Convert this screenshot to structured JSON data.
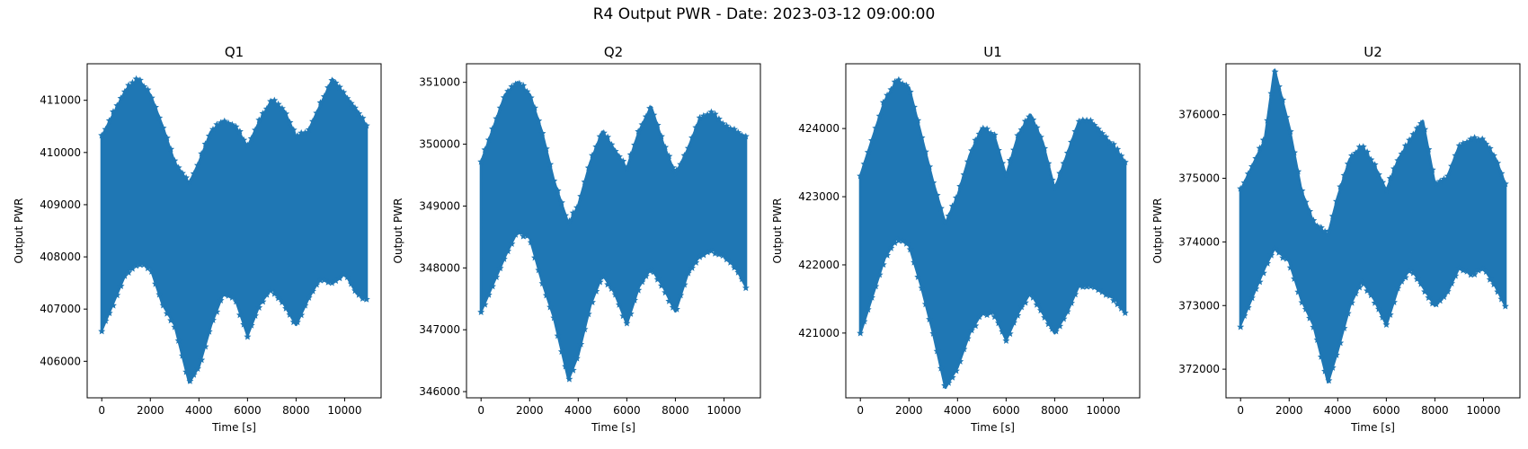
{
  "suptitle": "R4 Output PWR - Date: 2023-03-12 09:00:00",
  "colors": {
    "series": "#1f77b4",
    "axes": "#000000",
    "background": "#ffffff"
  },
  "chart_data": [
    {
      "type": "scatter",
      "marker": "star",
      "title": "Q1",
      "xlabel": "Time [s]",
      "ylabel": "Output PWR",
      "xlim": [
        -600,
        11500
      ],
      "ylim": [
        405300,
        411700
      ],
      "xticks": [
        0,
        2000,
        4000,
        6000,
        8000,
        10000
      ],
      "yticks": [
        406000,
        407000,
        408000,
        409000,
        410000,
        411000
      ],
      "grid": false,
      "x": [
        0,
        1000,
        1500,
        2000,
        2500,
        3000,
        3600,
        4000,
        4500,
        5000,
        5500,
        6000,
        6500,
        7000,
        7500,
        8000,
        8500,
        9000,
        9500,
        10000,
        10500,
        10900
      ],
      "upper": [
        410300,
        411200,
        411400,
        411100,
        410500,
        409800,
        409400,
        409800,
        410400,
        410600,
        410500,
        410100,
        410600,
        411000,
        410800,
        410300,
        410400,
        410900,
        411400,
        411100,
        410800,
        410500
      ],
      "lower": [
        406600,
        407700,
        407900,
        407800,
        407100,
        406700,
        405600,
        405900,
        406700,
        407300,
        407200,
        406500,
        407100,
        407400,
        407100,
        406700,
        407200,
        407600,
        407500,
        407700,
        407300,
        407200
      ]
    },
    {
      "type": "scatter",
      "marker": "star",
      "title": "Q2",
      "xlabel": "Time [s]",
      "ylabel": "Output PWR",
      "xlim": [
        -600,
        11500
      ],
      "ylim": [
        345900,
        351300
      ],
      "xticks": [
        0,
        2000,
        4000,
        6000,
        8000,
        10000
      ],
      "yticks": [
        346000,
        347000,
        348000,
        349000,
        350000,
        351000
      ],
      "grid": false,
      "x": [
        0,
        1000,
        1500,
        2000,
        2500,
        3000,
        3600,
        4000,
        4500,
        5000,
        5500,
        6000,
        6500,
        7000,
        7500,
        8000,
        8500,
        9000,
        9500,
        10000,
        10500,
        10900
      ],
      "upper": [
        349700,
        350800,
        351000,
        350800,
        350200,
        349400,
        348700,
        349000,
        349700,
        350200,
        349900,
        349600,
        350200,
        350600,
        350000,
        349500,
        349900,
        350400,
        350500,
        350300,
        350200,
        350100
      ],
      "lower": [
        347300,
        348200,
        348600,
        348500,
        347800,
        347200,
        346200,
        346600,
        347400,
        347900,
        347600,
        347100,
        347700,
        348000,
        347700,
        347300,
        347900,
        348200,
        348300,
        348200,
        348000,
        347700
      ]
    },
    {
      "type": "scatter",
      "marker": "star",
      "title": "U1",
      "xlabel": "Time [s]",
      "ylabel": "Output PWR",
      "xlim": [
        -600,
        11500
      ],
      "ylim": [
        420050,
        424950
      ],
      "xticks": [
        0,
        2000,
        4000,
        6000,
        8000,
        10000
      ],
      "yticks": [
        421000,
        422000,
        423000,
        424000
      ],
      "grid": false,
      "x": [
        0,
        1000,
        1500,
        2000,
        2500,
        3000,
        3500,
        4000,
        4500,
        5000,
        5500,
        6000,
        6500,
        7000,
        7500,
        8000,
        8500,
        9000,
        9500,
        10000,
        10500,
        10900
      ],
      "upper": [
        423300,
        424400,
        424700,
        424600,
        423900,
        423200,
        422600,
        423000,
        423600,
        424000,
        423900,
        423300,
        423900,
        424200,
        423800,
        423100,
        423600,
        424100,
        424100,
        423900,
        423700,
        423500
      ],
      "lower": [
        421000,
        422100,
        422400,
        422300,
        421700,
        421000,
        420200,
        420500,
        421000,
        421300,
        421300,
        420900,
        421300,
        421600,
        421300,
        421000,
        421300,
        421700,
        421700,
        421600,
        421500,
        421300
      ]
    },
    {
      "type": "scatter",
      "marker": "star",
      "title": "U2",
      "xlabel": "Time [s]",
      "ylabel": "Output PWR",
      "xlim": [
        -600,
        11500
      ],
      "ylim": [
        371550,
        376800
      ],
      "xticks": [
        0,
        2000,
        4000,
        6000,
        8000,
        10000
      ],
      "yticks": [
        372000,
        373000,
        374000,
        375000,
        376000
      ],
      "grid": false,
      "x": [
        0,
        1000,
        1400,
        2000,
        2500,
        3000,
        3600,
        4000,
        4500,
        5000,
        5500,
        6000,
        6500,
        7000,
        7500,
        8000,
        8500,
        9000,
        9500,
        10000,
        10500,
        10900
      ],
      "upper": [
        374800,
        375600,
        376700,
        375800,
        374800,
        374300,
        374100,
        374700,
        375300,
        375500,
        375200,
        374800,
        375300,
        375600,
        375900,
        374900,
        375000,
        375500,
        375600,
        375600,
        375300,
        374900
      ],
      "lower": [
        372700,
        373600,
        373900,
        373700,
        373100,
        372700,
        371800,
        372300,
        373000,
        373400,
        373100,
        372700,
        373300,
        373600,
        373300,
        373000,
        373200,
        373600,
        373500,
        373600,
        373300,
        373000
      ]
    }
  ]
}
